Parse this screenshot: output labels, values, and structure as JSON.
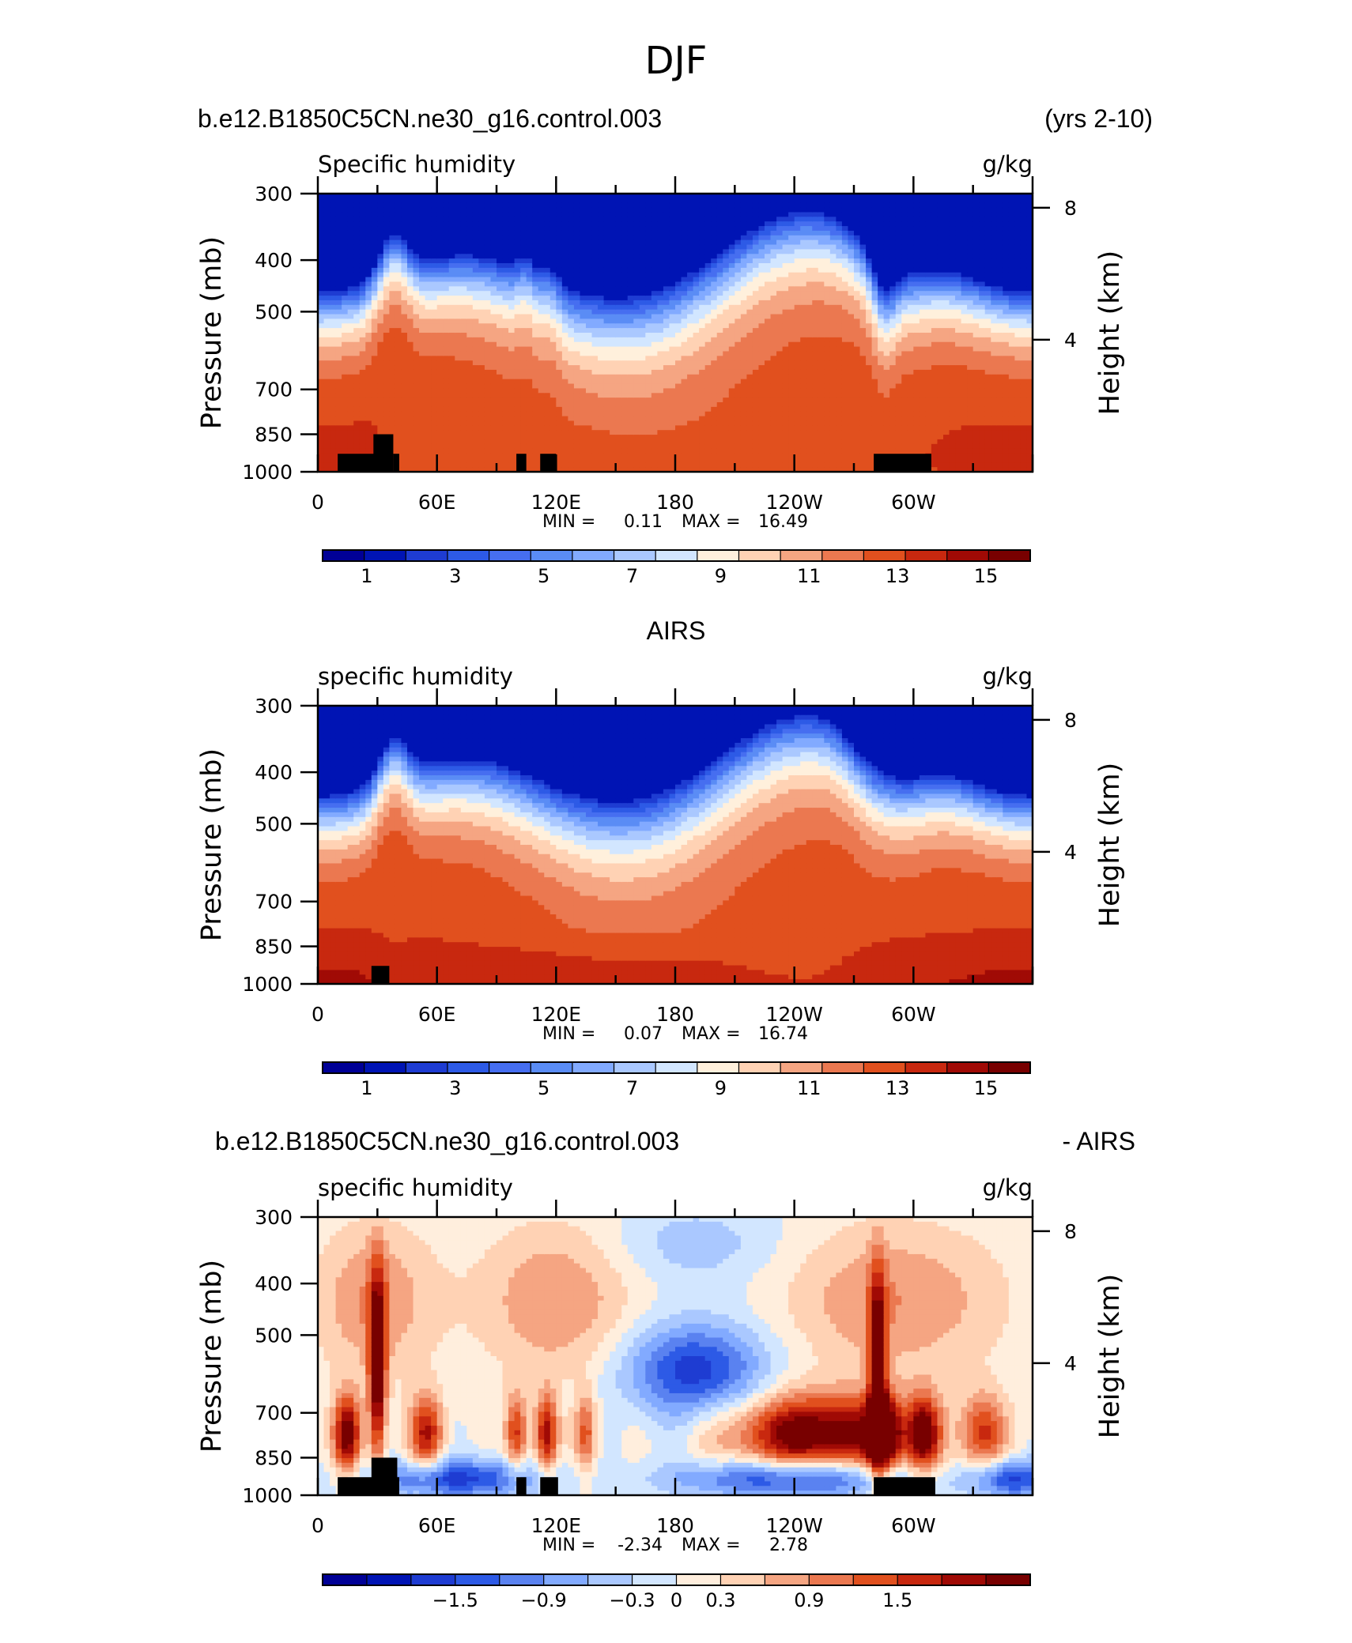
{
  "figure": {
    "main_title": "DJF",
    "case_name": "b.e12.B1850C5CN.ne30_g16.control.003",
    "years_label": "(yrs 2-10)",
    "obs_title": "AIRS",
    "diff_case_name": "b.e12.B1850C5CN.ne30_g16.control.003",
    "diff_obs_label": "- AIRS"
  },
  "colors": {
    "sequential": [
      "#000096",
      "#0014b4",
      "#1e3cd2",
      "#2d5ae6",
      "#466ef0",
      "#5a8cf5",
      "#82aaff",
      "#aac8ff",
      "#d2e6ff",
      "#fff0dc",
      "#ffd2b4",
      "#f5a582",
      "#eb7850",
      "#e1501e",
      "#c8280f",
      "#a00a05",
      "#780000"
    ],
    "diverging": [
      "#000096",
      "#0014b4",
      "#1e3cd2",
      "#2d5ae6",
      "#5a82f0",
      "#82aaff",
      "#aac8ff",
      "#d2e6ff",
      "#ffeedd",
      "#ffd2b4",
      "#f5a582",
      "#eb7850",
      "#e1501e",
      "#c8280f",
      "#a00a05",
      "#780000"
    ]
  },
  "chart_data": [
    {
      "type": "heatmap",
      "panel_id": "model",
      "left_label": "Specific humidity",
      "right_label": "g/kg",
      "ylabel": "Pressure (mb)",
      "ylabel_right": "Height (km)",
      "pressure_ticks": [
        "300",
        "400",
        "500",
        "700",
        "850",
        "1000"
      ],
      "pressure_values": [
        300,
        400,
        500,
        700,
        850,
        1000
      ],
      "height_ticks": [
        "8",
        "4"
      ],
      "height_values": [
        8,
        4
      ],
      "x_ticks": [
        "0",
        "60E",
        "120E",
        "180",
        "120W",
        "60W"
      ],
      "x_values": [
        0,
        60,
        120,
        180,
        240,
        300
      ],
      "xlim": [
        0,
        360
      ],
      "ylim": [
        300,
        1000
      ],
      "min_label": "MIN =",
      "min_value": "0.11",
      "max_label": "MAX =",
      "max_value": "16.49",
      "colorbar_labels": [
        "1",
        "3",
        "5",
        "7",
        "9",
        "11",
        "13",
        "15"
      ],
      "colorbar_levels": [
        1,
        3,
        5,
        7,
        9,
        11,
        13,
        15
      ],
      "colorbar_range": [
        0,
        16
      ],
      "palette": "sequential",
      "level_start": 0,
      "level_step": 1,
      "terrain": [
        [
          10,
          30,
          925
        ],
        [
          28,
          38,
          850
        ],
        [
          38,
          41,
          925
        ],
        [
          100,
          105,
          925
        ],
        [
          112,
          120,
          925
        ],
        [
          280,
          309,
          925
        ]
      ]
    },
    {
      "type": "heatmap",
      "panel_id": "obs",
      "left_label": "specific humidity",
      "right_label": "g/kg",
      "ylabel": "Pressure (mb)",
      "ylabel_right": "Height (km)",
      "pressure_ticks": [
        "300",
        "400",
        "500",
        "700",
        "850",
        "1000"
      ],
      "pressure_values": [
        300,
        400,
        500,
        700,
        850,
        1000
      ],
      "height_ticks": [
        "8",
        "4"
      ],
      "height_values": [
        8,
        4
      ],
      "x_ticks": [
        "0",
        "60E",
        "120E",
        "180",
        "120W",
        "60W"
      ],
      "x_values": [
        0,
        60,
        120,
        180,
        240,
        300
      ],
      "xlim": [
        0,
        360
      ],
      "ylim": [
        300,
        1000
      ],
      "min_label": "MIN =",
      "min_value": "0.07",
      "max_label": "MAX =",
      "max_value": "16.74",
      "colorbar_labels": [
        "1",
        "3",
        "5",
        "7",
        "9",
        "11",
        "13",
        "15"
      ],
      "colorbar_levels": [
        1,
        3,
        5,
        7,
        9,
        11,
        13,
        15
      ],
      "colorbar_range": [
        0,
        16
      ],
      "palette": "sequential",
      "level_start": 0,
      "level_step": 1,
      "terrain": [
        [
          27,
          36,
          925
        ]
      ]
    },
    {
      "type": "heatmap",
      "panel_id": "diff",
      "left_label": "specific humidity",
      "right_label": "g/kg",
      "ylabel": "Pressure (mb)",
      "ylabel_right": "Height (km)",
      "pressure_ticks": [
        "300",
        "400",
        "500",
        "700",
        "850",
        "1000"
      ],
      "pressure_values": [
        300,
        400,
        500,
        700,
        850,
        1000
      ],
      "height_ticks": [
        "8",
        "4"
      ],
      "height_values": [
        8,
        4
      ],
      "x_ticks": [
        "0",
        "60E",
        "120E",
        "180",
        "120W",
        "60W"
      ],
      "x_values": [
        0,
        60,
        120,
        180,
        240,
        300
      ],
      "xlim": [
        0,
        360
      ],
      "ylim": [
        300,
        1000
      ],
      "min_label": "MIN =",
      "min_value": "-2.34",
      "max_label": "MAX =",
      "max_value": "2.78",
      "colorbar_labels": [
        "−1.5",
        "−0.9",
        "−0.3",
        "0",
        "0.3",
        "0.9",
        "1.5"
      ],
      "colorbar_levels": [
        -1.5,
        -0.9,
        -0.3,
        0,
        0.3,
        0.9,
        1.5
      ],
      "colorbar_range": [
        -2.4,
        2.4
      ],
      "palette": "diverging",
      "level_start": -2.1,
      "level_step": 0.3,
      "terrain": [
        [
          10,
          28,
          925
        ],
        [
          27,
          40,
          850
        ],
        [
          37,
          41,
          925
        ],
        [
          100,
          105,
          925
        ],
        [
          112,
          121,
          925
        ],
        [
          280,
          311,
          925
        ]
      ]
    }
  ]
}
